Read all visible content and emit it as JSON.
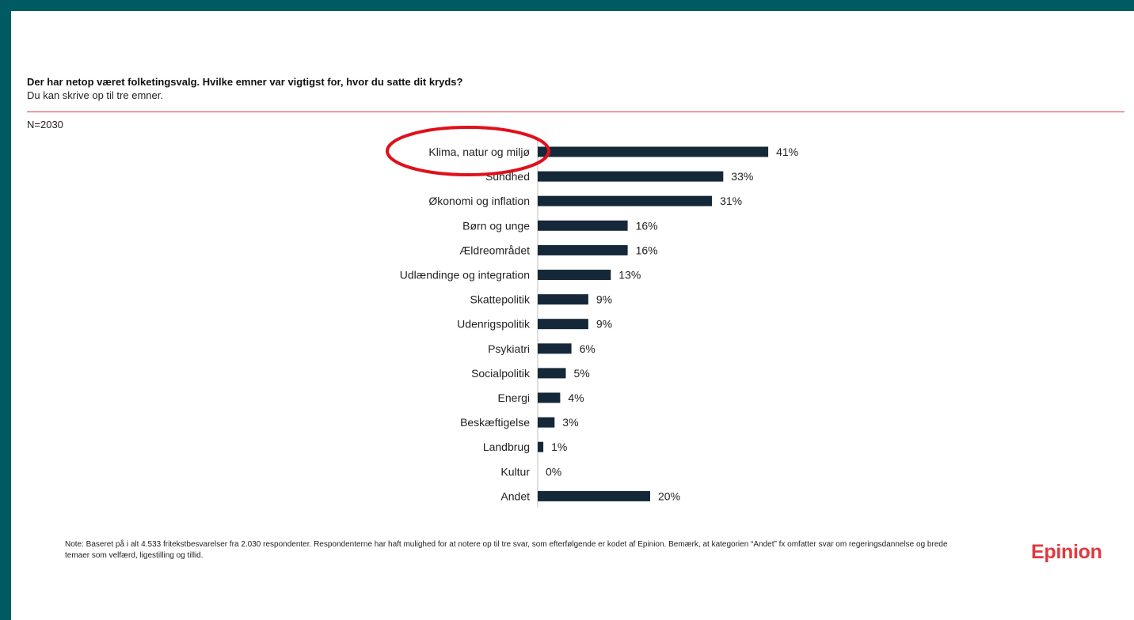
{
  "header": {
    "title": "Der har netop været folketingsvalg. Hvilke emner var vigtigst for, hvor du satte dit kryds?",
    "subtitle": "Du kan skrive op til tre emner.",
    "sample": "N=2030"
  },
  "chart_data": {
    "type": "bar",
    "orientation": "horizontal",
    "categories": [
      "Klima, natur og miljø",
      "Sundhed",
      "Økonomi og inflation",
      "Børn og unge",
      "Ældreområdet",
      "Udlændinge og integration",
      "Skattepolitik",
      "Udenrigspolitik",
      "Psykiatri",
      "Socialpolitik",
      "Energi",
      "Beskæftigelse",
      "Landbrug",
      "Kultur",
      "Andet"
    ],
    "values": [
      41,
      33,
      31,
      16,
      16,
      13,
      9,
      9,
      6,
      5,
      4,
      3,
      1,
      0,
      20
    ],
    "labels": [
      "41%",
      "33%",
      "31%",
      "16%",
      "16%",
      "13%",
      "9%",
      "9%",
      "6%",
      "5%",
      "4%",
      "3%",
      "1%",
      "0%",
      "20%"
    ],
    "unit": "%",
    "bar_color": "#14283a",
    "xlim": [
      0,
      45
    ],
    "grid": false,
    "highlight": {
      "category": "Klima, natur og miljø",
      "shape": "circle",
      "color": "#e0101b"
    }
  },
  "footer": {
    "note": "Note: Baseret på i alt 4.533 fritekstbesvarelser fra 2.030 respondenter. Respondenterne har haft mulighed for at notere op til tre svar, som efterfølgende er kodet af Epinion. Bemærk, at kategorien “Andet” fx omfatter svar om regeringsdannelse og brede temaer som velfærd, ligestilling og tillid.",
    "logo_text": "Epinion"
  },
  "colors": {
    "frame": "#005a63",
    "accent": "#e0393e",
    "highlight": "#e0101b",
    "bar": "#14283a"
  }
}
